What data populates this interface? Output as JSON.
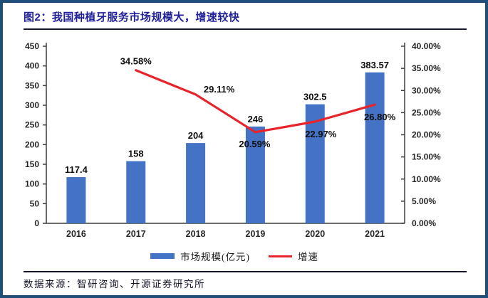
{
  "figure": {
    "title": "图2：我国种植牙服务市场规模大，增速较快",
    "source": "数据来源：智研咨询、开源证券研究所"
  },
  "legend": {
    "bar_label": "市场规模(亿元)",
    "line_label": "增速"
  },
  "colors": {
    "frame_border": "#1F4E79",
    "title_text": "#21219A",
    "bar": "#4472C4",
    "line": "#E8232B",
    "axis": "#3f3f3f"
  },
  "chart_data": {
    "type": "bar",
    "subtype": "combo-bar-line",
    "categories": [
      "2016",
      "2017",
      "2018",
      "2019",
      "2020",
      "2021"
    ],
    "series": [
      {
        "name": "市场规模(亿元)",
        "type": "bar",
        "axis": "left",
        "color": "#4472C4",
        "values": [
          117.4,
          158,
          204,
          246,
          302.5,
          383.57
        ],
        "labels": [
          "117.4",
          "158",
          "204",
          "246",
          "302.5",
          "383.57"
        ]
      },
      {
        "name": "增速",
        "type": "line",
        "axis": "right",
        "color": "#E8232B",
        "values": [
          null,
          34.58,
          29.11,
          20.59,
          22.97,
          26.8
        ],
        "labels": [
          "",
          "34.58%",
          "29.11%",
          "20.59%",
          "22.97%",
          "26.80%"
        ]
      }
    ],
    "left_axis": {
      "min": 0,
      "max": 450,
      "step": 50,
      "ticks": [
        "0",
        "50",
        "100",
        "150",
        "200",
        "250",
        "300",
        "350",
        "400",
        "450"
      ]
    },
    "right_axis": {
      "min": 0,
      "max": 40,
      "step": 5,
      "ticks": [
        "0.00%",
        "5.00%",
        "10.00%",
        "15.00%",
        "20.00%",
        "25.00%",
        "30.00%",
        "35.00%",
        "40.00%"
      ]
    },
    "grid": false,
    "legend_position": "bottom",
    "title": "图2：我国种植牙服务市场规模大，增速较快",
    "xlabel": "",
    "ylabel_left": "市场规模(亿元)",
    "ylabel_right": "增速"
  }
}
